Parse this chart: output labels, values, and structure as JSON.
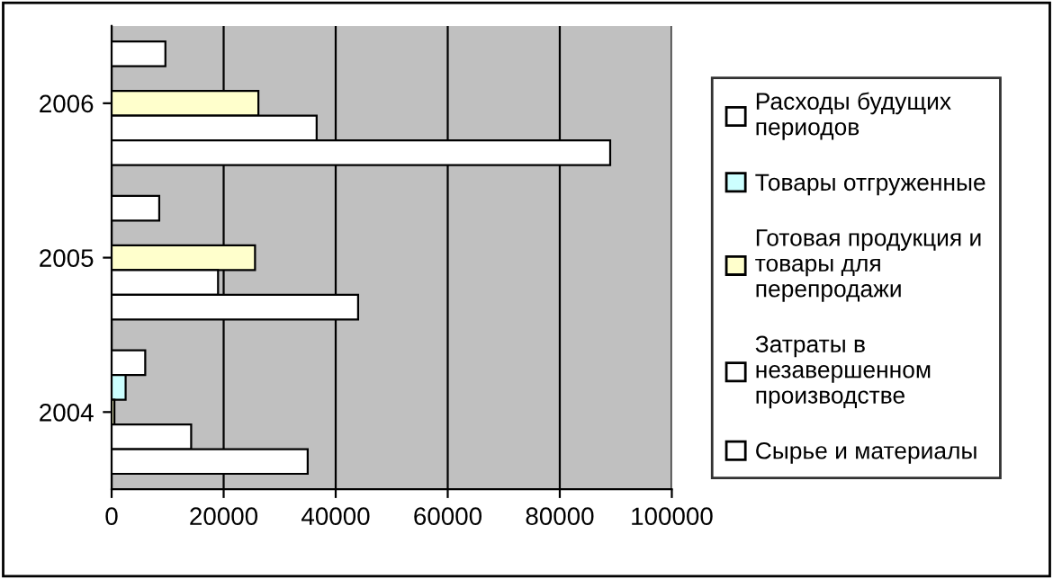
{
  "chart_data": {
    "type": "bar",
    "orientation": "horizontal",
    "categories": [
      "2006",
      "2005",
      "2004"
    ],
    "series": [
      {
        "name": "Расходы будущих периодов",
        "color": "#ffffff",
        "values": [
          9600,
          8500,
          6000
        ]
      },
      {
        "name": "Товары отгруженные",
        "color": "#ccffff",
        "values": [
          null,
          null,
          2500
        ]
      },
      {
        "name": "Готовая продукция и товары для перепродажи",
        "color": "#ffffcc",
        "values": [
          26200,
          25600,
          500
        ]
      },
      {
        "name": "Затраты в незавершенном производстве",
        "color": "#ffffff",
        "values": [
          36600,
          19000,
          14200
        ]
      },
      {
        "name": "Сырье и материалы",
        "color": "#ffffff",
        "values": [
          89000,
          44000,
          35000
        ]
      }
    ],
    "xlim": [
      0,
      100000
    ],
    "xticks": [
      0,
      20000,
      40000,
      60000,
      80000,
      100000
    ],
    "grid": "x",
    "legend": "right"
  }
}
